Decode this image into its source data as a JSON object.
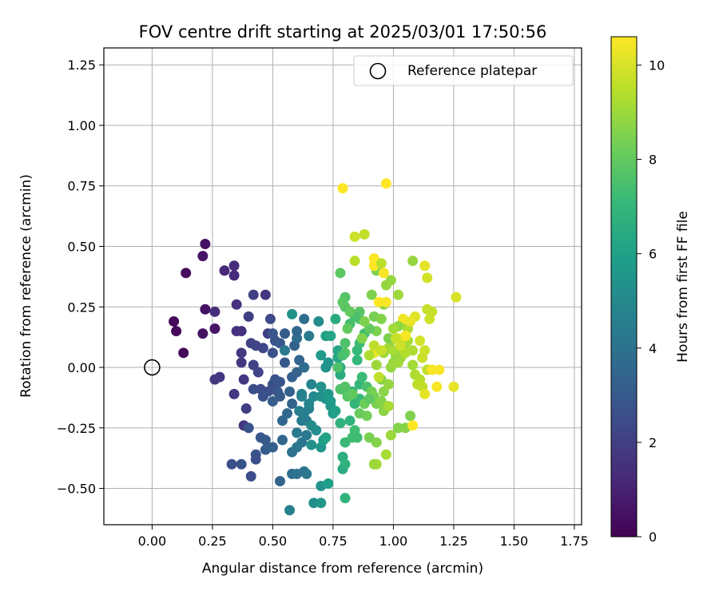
{
  "chart_data": {
    "type": "scatter",
    "title": "FOV centre drift starting at 2025/03/01 17:50:56",
    "xlabel": "Angular distance from reference (arcmin)",
    "ylabel": "Rotation from reference (arcmin)",
    "xlim": [
      -0.2,
      1.78
    ],
    "ylim": [
      -0.65,
      1.32
    ],
    "xticks": [
      "0.00",
      "0.25",
      "0.50",
      "0.75",
      "1.00",
      "1.25",
      "1.50",
      "1.75"
    ],
    "yticks": [
      "−0.50",
      "−0.25",
      "0.00",
      "0.25",
      "0.50",
      "0.75",
      "1.00",
      "1.25"
    ],
    "grid": true,
    "legend": {
      "position": "top-right",
      "entries": [
        "Reference platepar"
      ]
    },
    "colorbar": {
      "label": "Hours from first FF file",
      "range": [
        0,
        10.6
      ],
      "ticks": [
        "0",
        "2",
        "4",
        "6",
        "8",
        "10"
      ],
      "colormap": "viridis"
    },
    "reference": {
      "x": 0.0,
      "y": 0.0
    },
    "points": [
      [
        0.22,
        0.51,
        0.5
      ],
      [
        0.21,
        0.46,
        0.6
      ],
      [
        0.14,
        0.39,
        0.3
      ],
      [
        0.09,
        0.19,
        0.2
      ],
      [
        0.1,
        0.15,
        0.2
      ],
      [
        0.13,
        0.06,
        0.2
      ],
      [
        0.22,
        0.24,
        0.5
      ],
      [
        0.21,
        0.14,
        0.5
      ],
      [
        0.26,
        0.16,
        0.6
      ],
      [
        0.3,
        0.4,
        1.2
      ],
      [
        0.34,
        0.42,
        1.3
      ],
      [
        0.34,
        0.38,
        1.3
      ],
      [
        0.26,
        0.23,
        1.4
      ],
      [
        0.35,
        0.26,
        1.5
      ],
      [
        0.35,
        0.15,
        1.5
      ],
      [
        0.37,
        0.15,
        1.5
      ],
      [
        0.26,
        -0.05,
        1.7
      ],
      [
        0.28,
        -0.04,
        1.7
      ],
      [
        0.34,
        -0.11,
        1.8
      ],
      [
        0.37,
        0.06,
        1.8
      ],
      [
        0.37,
        0.02,
        1.8
      ],
      [
        0.38,
        -0.05,
        1.8
      ],
      [
        0.38,
        -0.24,
        1.7
      ],
      [
        0.39,
        -0.17,
        2.0
      ],
      [
        0.4,
        0.21,
        2.0
      ],
      [
        0.42,
        0.3,
        2.0
      ],
      [
        0.41,
        0.1,
        2.1
      ],
      [
        0.43,
        0.09,
        2.2
      ],
      [
        0.42,
        0.01,
        2.1
      ],
      [
        0.44,
        -0.02,
        2.2
      ],
      [
        0.47,
        0.3,
        1.7
      ],
      [
        0.48,
        0.14,
        2.0
      ],
      [
        0.46,
        0.08,
        2.3
      ],
      [
        0.49,
        0.2,
        2.4
      ],
      [
        0.42,
        -0.09,
        2.5
      ],
      [
        0.45,
        -0.09,
        2.5
      ],
      [
        0.46,
        -0.12,
        2.6
      ],
      [
        0.48,
        -0.1,
        2.6
      ],
      [
        0.5,
        -0.07,
        2.6
      ],
      [
        0.51,
        -0.05,
        2.7
      ],
      [
        0.5,
        0.06,
        2.6
      ],
      [
        0.51,
        0.11,
        2.7
      ],
      [
        0.5,
        0.14,
        2.8
      ],
      [
        0.53,
        0.1,
        2.9
      ],
      [
        0.55,
        0.14,
        3.0
      ],
      [
        0.55,
        0.02,
        2.9
      ],
      [
        0.53,
        -0.06,
        2.8
      ],
      [
        0.52,
        -0.1,
        2.9
      ],
      [
        0.53,
        -0.12,
        3.0
      ],
      [
        0.5,
        -0.14,
        3.1
      ],
      [
        0.4,
        -0.25,
        2.7
      ],
      [
        0.41,
        -0.45,
        2.5
      ],
      [
        0.33,
        -0.4,
        2.6
      ],
      [
        0.37,
        -0.4,
        2.7
      ],
      [
        0.43,
        -0.36,
        2.8
      ],
      [
        0.43,
        -0.38,
        2.6
      ],
      [
        0.45,
        -0.29,
        2.9
      ],
      [
        0.47,
        -0.3,
        3.0
      ],
      [
        0.48,
        -0.33,
        3.0
      ],
      [
        0.47,
        -0.34,
        3.1
      ],
      [
        0.5,
        -0.33,
        3.2
      ],
      [
        0.53,
        -0.47,
        3.4
      ],
      [
        0.54,
        -0.3,
        3.5
      ],
      [
        0.54,
        -0.22,
        3.5
      ],
      [
        0.56,
        -0.19,
        3.6
      ],
      [
        0.57,
        -0.1,
        3.3
      ],
      [
        0.58,
        -0.15,
        3.4
      ],
      [
        0.58,
        -0.04,
        3.2
      ],
      [
        0.6,
        -0.02,
        3.3
      ],
      [
        0.61,
        0.03,
        3.4
      ],
      [
        0.59,
        0.09,
        3.3
      ],
      [
        0.6,
        0.12,
        3.7
      ],
      [
        0.6,
        0.15,
        3.5
      ],
      [
        0.63,
        0.2,
        3.8
      ],
      [
        0.63,
        0.0,
        3.7
      ],
      [
        0.58,
        -0.44,
        3.9
      ],
      [
        0.6,
        -0.44,
        4.0
      ],
      [
        0.63,
        -0.43,
        4.0
      ],
      [
        0.64,
        -0.44,
        4.2
      ],
      [
        0.58,
        -0.35,
        4.0
      ],
      [
        0.6,
        -0.33,
        4.1
      ],
      [
        0.62,
        -0.31,
        4.1
      ],
      [
        0.64,
        -0.28,
        4.3
      ],
      [
        0.6,
        -0.27,
        4.3
      ],
      [
        0.62,
        -0.22,
        4.4
      ],
      [
        0.64,
        -0.22,
        4.5
      ],
      [
        0.61,
        -0.18,
        4.6
      ],
      [
        0.63,
        -0.19,
        4.5
      ],
      [
        0.65,
        -0.17,
        4.6
      ],
      [
        0.62,
        -0.11,
        4.6
      ],
      [
        0.57,
        -0.59,
        4.6
      ],
      [
        0.67,
        -0.56,
        5.2
      ],
      [
        0.7,
        -0.56,
        5.6
      ],
      [
        0.7,
        -0.49,
        5.4
      ],
      [
        0.73,
        -0.48,
        5.9
      ],
      [
        0.55,
        0.07,
        4.3
      ],
      [
        0.58,
        0.22,
        5.4
      ],
      [
        0.65,
        0.13,
        4.4
      ],
      [
        0.69,
        0.19,
        5.1
      ],
      [
        0.62,
        -0.12,
        4.7
      ],
      [
        0.66,
        -0.07,
        4.8
      ],
      [
        0.65,
        -0.15,
        4.9
      ],
      [
        0.67,
        -0.12,
        5.0
      ],
      [
        0.66,
        -0.24,
        5.1
      ],
      [
        0.68,
        -0.26,
        5.2
      ],
      [
        0.66,
        -0.32,
        5.3
      ],
      [
        0.7,
        -0.33,
        5.5
      ],
      [
        0.71,
        -0.3,
        5.8
      ],
      [
        0.72,
        -0.29,
        6.1
      ],
      [
        0.7,
        -0.12,
        5.3
      ],
      [
        0.7,
        -0.08,
        5.4
      ],
      [
        0.72,
        -0.13,
        5.5
      ],
      [
        0.73,
        -0.11,
        5.6
      ],
      [
        0.74,
        -0.16,
        5.6
      ],
      [
        0.74,
        -0.14,
        5.7
      ],
      [
        0.75,
        -0.19,
        5.8
      ],
      [
        0.76,
        -0.18,
        6.0
      ],
      [
        0.72,
        0.0,
        5.4
      ],
      [
        0.73,
        0.02,
        5.5
      ],
      [
        0.7,
        0.05,
        5.7
      ],
      [
        0.72,
        0.13,
        6.0
      ],
      [
        0.74,
        0.13,
        6.2
      ],
      [
        0.76,
        0.2,
        6.4
      ],
      [
        0.77,
        0.07,
        6.2
      ],
      [
        0.77,
        0.04,
        6.3
      ],
      [
        0.78,
        0.0,
        6.5
      ],
      [
        0.78,
        -0.03,
        6.5
      ],
      [
        0.79,
        -0.09,
        6.7
      ],
      [
        0.78,
        -0.23,
        6.8
      ],
      [
        0.79,
        -0.37,
        6.6
      ],
      [
        0.79,
        -0.42,
        6.5
      ],
      [
        0.8,
        -0.4,
        6.8
      ],
      [
        0.8,
        -0.54,
        6.9
      ],
      [
        0.8,
        -0.31,
        7.1
      ],
      [
        0.82,
        -0.22,
        6.8
      ],
      [
        0.83,
        -0.29,
        7.3
      ],
      [
        0.84,
        -0.26,
        7.3
      ],
      [
        0.85,
        -0.29,
        7.3
      ],
      [
        0.83,
        -0.1,
        6.9
      ],
      [
        0.84,
        -0.15,
        7.0
      ],
      [
        0.86,
        -0.13,
        7.1
      ],
      [
        0.86,
        -0.07,
        7.0
      ],
      [
        0.87,
        -0.04,
        7.2
      ],
      [
        0.89,
        -0.08,
        7.5
      ],
      [
        0.85,
        0.03,
        7.0
      ],
      [
        0.85,
        0.07,
        7.1
      ],
      [
        0.86,
        0.1,
        7.2
      ],
      [
        0.88,
        0.14,
        7.3
      ],
      [
        0.86,
        0.2,
        7.6
      ],
      [
        0.86,
        0.23,
        7.8
      ],
      [
        0.84,
        0.21,
        7.5
      ],
      [
        0.82,
        0.18,
        7.4
      ],
      [
        0.8,
        0.29,
        7.7
      ],
      [
        0.78,
        0.39,
        7.9
      ],
      [
        0.8,
        0.25,
        7.8
      ],
      [
        0.79,
        0.27,
        7.9
      ],
      [
        0.82,
        0.23,
        8.0
      ],
      [
        0.81,
        0.16,
        8.0
      ],
      [
        0.8,
        0.1,
        7.6
      ],
      [
        0.8,
        0.06,
        7.8
      ],
      [
        0.79,
        0.05,
        7.5
      ],
      [
        0.77,
        0.0,
        7.6
      ],
      [
        0.78,
        -0.09,
        7.6
      ],
      [
        0.8,
        -0.08,
        7.7
      ],
      [
        0.81,
        -0.12,
        7.8
      ],
      [
        0.83,
        -0.11,
        8.0
      ],
      [
        0.86,
        -0.19,
        8.1
      ],
      [
        0.88,
        -0.15,
        8.2
      ],
      [
        0.89,
        -0.2,
        8.3
      ],
      [
        0.91,
        -0.1,
        8.3
      ],
      [
        0.92,
        -0.12,
        8.4
      ],
      [
        0.93,
        -0.15,
        8.5
      ],
      [
        0.95,
        -0.14,
        8.6
      ],
      [
        0.96,
        -0.18,
        8.7
      ],
      [
        0.98,
        -0.16,
        9.2
      ],
      [
        0.96,
        -0.1,
        8.7
      ],
      [
        0.95,
        -0.05,
        8.6
      ],
      [
        0.98,
        -0.07,
        8.9
      ],
      [
        0.99,
        0.0,
        8.9
      ],
      [
        1.0,
        0.02,
        9.0
      ],
      [
        1.01,
        0.05,
        8.8
      ],
      [
        1.02,
        0.02,
        9.1
      ],
      [
        1.03,
        0.04,
        9.0
      ],
      [
        1.04,
        0.08,
        9.1
      ],
      [
        1.05,
        0.1,
        9.0
      ],
      [
        0.93,
        0.4,
        8.5
      ],
      [
        0.91,
        0.3,
        8.5
      ],
      [
        0.92,
        0.21,
        8.4
      ],
      [
        0.93,
        0.15,
        8.5
      ],
      [
        0.95,
        0.2,
        8.6
      ],
      [
        0.96,
        0.26,
        8.8
      ],
      [
        0.97,
        0.34,
        8.9
      ],
      [
        0.99,
        0.36,
        8.9
      ],
      [
        1.02,
        0.3,
        9.0
      ],
      [
        1.04,
        0.19,
        9.2
      ],
      [
        1.06,
        0.16,
        9.3
      ],
      [
        1.06,
        0.11,
        9.2
      ],
      [
        1.08,
        0.07,
        9.3
      ],
      [
        1.08,
        0.01,
        9.1
      ],
      [
        1.09,
        -0.03,
        9.3
      ],
      [
        1.11,
        -0.05,
        9.4
      ],
      [
        1.1,
        -0.07,
        9.5
      ],
      [
        1.12,
        -0.08,
        9.6
      ],
      [
        1.14,
        -0.01,
        9.6
      ],
      [
        1.12,
        0.04,
        9.7
      ],
      [
        1.13,
        0.07,
        9.8
      ],
      [
        1.11,
        0.11,
        9.9
      ],
      [
        1.15,
        0.2,
        9.8
      ],
      [
        1.14,
        0.24,
        9.7
      ],
      [
        1.14,
        0.37,
        9.9
      ],
      [
        1.08,
        0.44,
        8.9
      ],
      [
        1.13,
        0.42,
        10.2
      ],
      [
        1.16,
        0.23,
        9.7
      ],
      [
        1.05,
        0.06,
        9.4
      ],
      [
        1.07,
        -0.2,
        8.5
      ],
      [
        1.05,
        -0.25,
        8.7
      ],
      [
        1.02,
        -0.25,
        8.6
      ],
      [
        1.08,
        -0.24,
        10.6
      ],
      [
        1.18,
        -0.08,
        10.5
      ],
      [
        1.25,
        -0.08,
        10.2
      ],
      [
        1.16,
        -0.01,
        10.5
      ],
      [
        1.19,
        -0.01,
        10.5
      ],
      [
        1.13,
        -0.11,
        10.2
      ],
      [
        1.26,
        0.29,
        10.0
      ],
      [
        1.09,
        0.21,
        10.1
      ],
      [
        1.04,
        0.2,
        10.4
      ],
      [
        1.05,
        0.13,
        10.5
      ],
      [
        1.07,
        0.19,
        10.3
      ],
      [
        1.02,
        0.12,
        10.4
      ],
      [
        0.92,
        0.06,
        10.3
      ],
      [
        0.97,
        0.76,
        10.6
      ],
      [
        0.79,
        0.74,
        10.6
      ],
      [
        0.92,
        0.45,
        10.6
      ],
      [
        0.92,
        0.42,
        10.6
      ],
      [
        0.96,
        0.39,
        10.5
      ],
      [
        0.94,
        0.27,
        10.6
      ],
      [
        0.97,
        0.27,
        10.5
      ],
      [
        0.84,
        0.54,
        9.8
      ],
      [
        0.88,
        0.55,
        9.6
      ],
      [
        0.84,
        0.44,
        9.5
      ],
      [
        0.95,
        0.43,
        9.5
      ],
      [
        0.9,
        -0.13,
        7.9
      ],
      [
        0.93,
        -0.31,
        8.6
      ],
      [
        0.9,
        -0.29,
        8.4
      ],
      [
        0.93,
        -0.4,
        9.2
      ],
      [
        0.92,
        -0.4,
        9.0
      ],
      [
        0.97,
        -0.36,
        9.2
      ],
      [
        0.99,
        -0.28,
        9.0
      ],
      [
        0.94,
        -0.04,
        9.6
      ],
      [
        0.93,
        0.01,
        9.0
      ],
      [
        0.96,
        0.06,
        9.0
      ],
      [
        0.98,
        0.08,
        9.1
      ],
      [
        0.99,
        0.11,
        9.0
      ],
      [
        1.02,
        0.17,
        8.8
      ],
      [
        1.0,
        0.16,
        9.1
      ],
      [
        0.9,
        0.16,
        8.0
      ],
      [
        0.88,
        0.19,
        8.5
      ],
      [
        0.87,
        0.12,
        8.6
      ],
      [
        0.9,
        0.05,
        9.3
      ],
      [
        0.92,
        0.09,
        9.6
      ],
      [
        0.95,
        0.07,
        9.7
      ],
      [
        0.98,
        0.12,
        8.5
      ],
      [
        1.0,
        0.07,
        9.2
      ],
      [
        1.01,
        0.12,
        9.7
      ],
      [
        1.03,
        0.09,
        9.8
      ]
    ]
  }
}
